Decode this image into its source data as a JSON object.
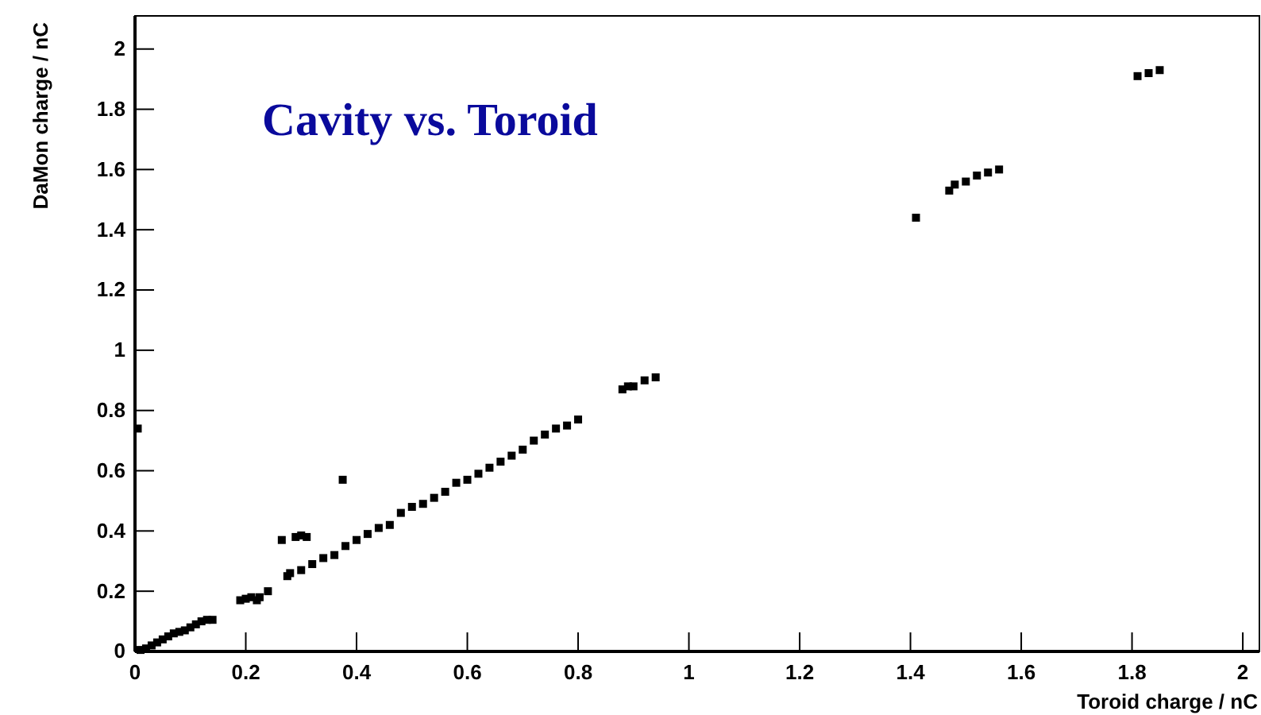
{
  "chart_data": {
    "type": "scatter",
    "xlabel": "Toroid charge / nC",
    "ylabel": "DaMon charge / nC",
    "annotations": [
      "Cavity vs. Toroid"
    ],
    "xlim": [
      0,
      2.03
    ],
    "ylim": [
      0,
      2.11
    ],
    "xticks": [
      0,
      0.2,
      0.4,
      0.6,
      0.8,
      1,
      1.2,
      1.4,
      1.6,
      1.8,
      2
    ],
    "yticks": [
      0,
      0.2,
      0.4,
      0.6,
      0.8,
      1,
      1.2,
      1.4,
      1.6,
      1.8,
      2
    ],
    "grid": false,
    "marker": "square",
    "series": [
      {
        "color": "#000000",
        "x": [
          0.005,
          0.01,
          0.02,
          0.03,
          0.04,
          0.05,
          0.06,
          0.07,
          0.08,
          0.09,
          0.1,
          0.11,
          0.12,
          0.13,
          0.14,
          0.19,
          0.2,
          0.21,
          0.22,
          0.225,
          0.24,
          0.265,
          0.29,
          0.3,
          0.31,
          0.275,
          0.28,
          0.3,
          0.32,
          0.34,
          0.36,
          0.38,
          0.4,
          0.42,
          0.44,
          0.46,
          0.48,
          0.5,
          0.52,
          0.54,
          0.56,
          0.58,
          0.6,
          0.62,
          0.64,
          0.66,
          0.68,
          0.7,
          0.72,
          0.74,
          0.76,
          0.78,
          0.8,
          0.375,
          0.88,
          0.89,
          0.9,
          0.92,
          0.94,
          1.41,
          1.47,
          1.48,
          1.5,
          1.52,
          1.54,
          1.56,
          1.81,
          1.83,
          1.85
        ],
        "values": [
          0.74,
          0.005,
          0.01,
          0.02,
          0.03,
          0.04,
          0.05,
          0.06,
          0.065,
          0.07,
          0.08,
          0.09,
          0.1,
          0.105,
          0.105,
          0.17,
          0.175,
          0.18,
          0.17,
          0.18,
          0.2,
          0.37,
          0.38,
          0.385,
          0.38,
          0.25,
          0.26,
          0.27,
          0.29,
          0.31,
          0.32,
          0.35,
          0.37,
          0.39,
          0.41,
          0.42,
          0.46,
          0.48,
          0.49,
          0.51,
          0.53,
          0.56,
          0.57,
          0.59,
          0.61,
          0.63,
          0.65,
          0.67,
          0.7,
          0.72,
          0.74,
          0.75,
          0.77,
          0.57,
          0.87,
          0.88,
          0.88,
          0.9,
          0.91,
          1.44,
          1.53,
          1.55,
          1.56,
          1.58,
          1.59,
          1.6,
          1.91,
          1.92,
          1.93
        ]
      }
    ]
  }
}
